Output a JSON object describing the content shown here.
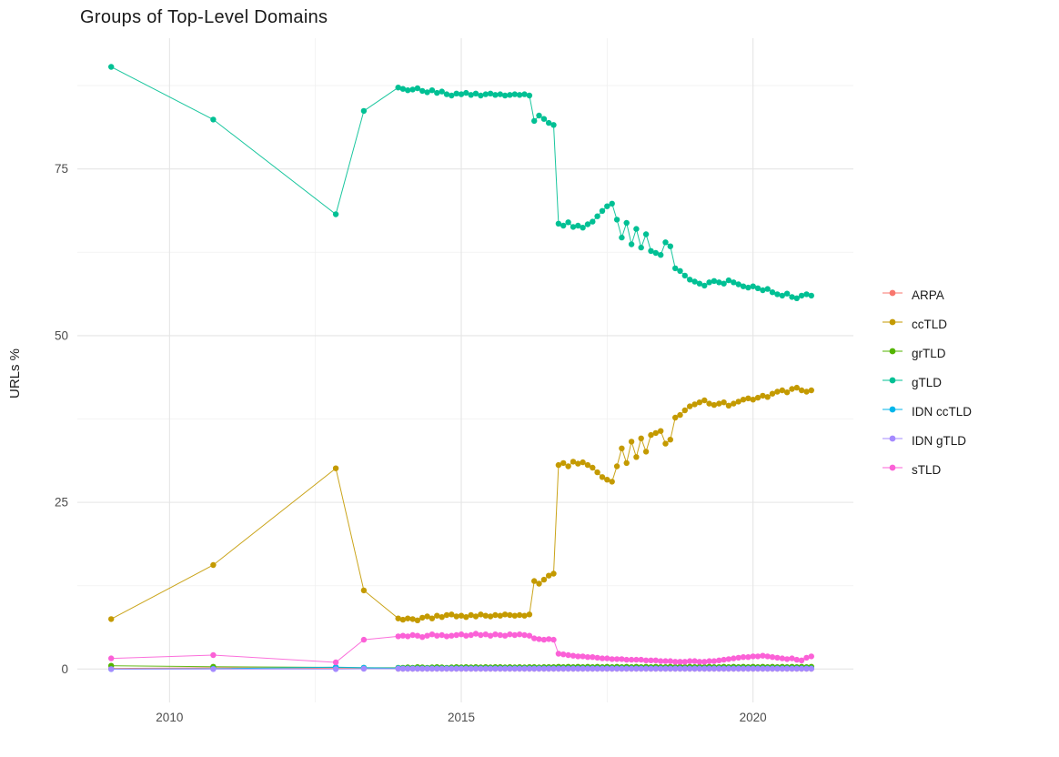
{
  "title": "Groups of Top-Level Domains",
  "ylabel": "URLs %",
  "chart_data": {
    "type": "line",
    "title": "Groups of Top-Level Domains",
    "xlabel": "",
    "ylabel": "URLs %",
    "xlim": [
      2008.42,
      2021.72
    ],
    "ylim": [
      -5.0,
      94.6
    ],
    "x_ticks": [
      2010,
      2015,
      2020
    ],
    "y_ticks": [
      0,
      25,
      50,
      75
    ],
    "x_minor": [
      2012.5,
      2017.5
    ],
    "y_minor": [
      12.5,
      37.5,
      62.5,
      87.5
    ],
    "grid": true,
    "legend_position": "right",
    "background": "#ffffff",
    "grid_major_color": "#e5e5e5",
    "grid_minor_color": "#f0f0f0",
    "x": [
      2009.0,
      2010.75,
      2012.85,
      2013.33,
      2013.92,
      2014.0,
      2014.083,
      2014.167,
      2014.25,
      2014.333,
      2014.417,
      2014.5,
      2014.583,
      2014.667,
      2014.75,
      2014.833,
      2014.917,
      2015.0,
      2015.083,
      2015.167,
      2015.25,
      2015.333,
      2015.417,
      2015.5,
      2015.583,
      2015.667,
      2015.75,
      2015.833,
      2015.917,
      2016.0,
      2016.083,
      2016.167,
      2016.25,
      2016.333,
      2016.417,
      2016.5,
      2016.583,
      2016.667,
      2016.75,
      2016.833,
      2016.917,
      2017.0,
      2017.083,
      2017.167,
      2017.25,
      2017.333,
      2017.417,
      2017.5,
      2017.583,
      2017.667,
      2017.75,
      2017.833,
      2017.917,
      2018.0,
      2018.083,
      2018.167,
      2018.25,
      2018.333,
      2018.417,
      2018.5,
      2018.583,
      2018.667,
      2018.75,
      2018.833,
      2018.917,
      2019.0,
      2019.083,
      2019.167,
      2019.25,
      2019.333,
      2019.417,
      2019.5,
      2019.583,
      2019.667,
      2019.75,
      2019.833,
      2019.917,
      2020.0,
      2020.083,
      2020.167,
      2020.25,
      2020.333,
      2020.417,
      2020.5,
      2020.583,
      2020.667,
      2020.75,
      2020.833,
      2020.917,
      2021.0
    ],
    "series": [
      {
        "name": "ARPA",
        "color": "#F8766D",
        "values": [
          0.1,
          0.2,
          0.1,
          0.08,
          0.05,
          0.05,
          0.05,
          0.05,
          0.05,
          0.05,
          0.05,
          0.05,
          0.05,
          0.05,
          0.05,
          0.05,
          0.05,
          0.05,
          0.05,
          0.05,
          0.05,
          0.05,
          0.05,
          0.05,
          0.05,
          0.05,
          0.05,
          0.05,
          0.05,
          0.05,
          0.05,
          0.05,
          0.05,
          0.05,
          0.05,
          0.05,
          0.05,
          0.05,
          0.05,
          0.05,
          0.05,
          0.05,
          0.05,
          0.05,
          0.05,
          0.05,
          0.05,
          0.05,
          0.05,
          0.05,
          0.05,
          0.05,
          0.05,
          0.05,
          0.05,
          0.05,
          0.05,
          0.05,
          0.05,
          0.05,
          0.05,
          0.05,
          0.05,
          0.05,
          0.05,
          0.05,
          0.05,
          0.05,
          0.05,
          0.05,
          0.05,
          0.05,
          0.05,
          0.05,
          0.05,
          0.05,
          0.05,
          0.05,
          0.05,
          0.05,
          0.05,
          0.05,
          0.05,
          0.05,
          0.05,
          0.05,
          0.05,
          0.05,
          0.05,
          0.05
        ]
      },
      {
        "name": "ccTLD",
        "color": "#C49A00",
        "values": [
          7.5,
          15.6,
          30.1,
          11.8,
          7.6,
          7.4,
          7.6,
          7.5,
          7.3,
          7.7,
          7.9,
          7.6,
          8.0,
          7.8,
          8.1,
          8.2,
          7.9,
          8.0,
          7.8,
          8.1,
          7.9,
          8.2,
          8.0,
          7.9,
          8.1,
          8.0,
          8.2,
          8.1,
          8.0,
          8.1,
          8.0,
          8.2,
          13.2,
          12.8,
          13.4,
          14.0,
          14.3,
          30.6,
          30.9,
          30.4,
          31.1,
          30.8,
          31.0,
          30.6,
          30.2,
          29.5,
          28.8,
          28.4,
          28.1,
          30.4,
          33.1,
          30.9,
          34.1,
          31.8,
          34.6,
          32.6,
          35.1,
          35.4,
          35.7,
          33.8,
          34.4,
          37.7,
          38.1,
          38.8,
          39.4,
          39.7,
          40.0,
          40.3,
          39.8,
          39.6,
          39.8,
          40.0,
          39.5,
          39.8,
          40.1,
          40.4,
          40.6,
          40.4,
          40.7,
          41.0,
          40.8,
          41.3,
          41.6,
          41.8,
          41.5,
          42.0,
          42.2,
          41.8,
          41.6,
          41.8
        ]
      },
      {
        "name": "grTLD",
        "color": "#53B400",
        "values": [
          0.5,
          0.35,
          0.25,
          0.2,
          0.2,
          0.2,
          0.25,
          0.2,
          0.3,
          0.25,
          0.2,
          0.25,
          0.3,
          0.25,
          0.2,
          0.25,
          0.3,
          0.25,
          0.3,
          0.25,
          0.3,
          0.25,
          0.3,
          0.25,
          0.3,
          0.3,
          0.25,
          0.3,
          0.25,
          0.3,
          0.25,
          0.3,
          0.3,
          0.25,
          0.3,
          0.3,
          0.3,
          0.35,
          0.3,
          0.35,
          0.3,
          0.35,
          0.3,
          0.35,
          0.3,
          0.35,
          0.3,
          0.35,
          0.3,
          0.35,
          0.3,
          0.35,
          0.3,
          0.35,
          0.3,
          0.35,
          0.3,
          0.35,
          0.3,
          0.3,
          0.35,
          0.3,
          0.35,
          0.3,
          0.35,
          0.3,
          0.35,
          0.3,
          0.35,
          0.3,
          0.3,
          0.35,
          0.3,
          0.35,
          0.3,
          0.35,
          0.3,
          0.35,
          0.3,
          0.35,
          0.3,
          0.35,
          0.3,
          0.35,
          0.3,
          0.35,
          0.3,
          0.35,
          0.3,
          0.35
        ]
      },
      {
        "name": "gTLD",
        "color": "#00C094",
        "values": [
          90.3,
          82.4,
          68.2,
          83.7,
          87.2,
          87.0,
          86.8,
          86.9,
          87.1,
          86.7,
          86.5,
          86.8,
          86.4,
          86.6,
          86.2,
          86.0,
          86.3,
          86.2,
          86.4,
          86.1,
          86.3,
          86.0,
          86.2,
          86.3,
          86.1,
          86.2,
          86.0,
          86.1,
          86.2,
          86.1,
          86.2,
          86.0,
          82.2,
          83.0,
          82.5,
          81.9,
          81.6,
          66.8,
          66.5,
          67.0,
          66.3,
          66.5,
          66.2,
          66.7,
          67.1,
          67.9,
          68.7,
          69.4,
          69.8,
          67.4,
          64.7,
          66.9,
          63.7,
          66.0,
          63.2,
          65.2,
          62.7,
          62.4,
          62.1,
          64.0,
          63.4,
          60.1,
          59.7,
          59.0,
          58.4,
          58.1,
          57.8,
          57.5,
          58.0,
          58.2,
          58.0,
          57.8,
          58.3,
          58.0,
          57.7,
          57.4,
          57.2,
          57.4,
          57.1,
          56.8,
          57.0,
          56.5,
          56.2,
          56.0,
          56.3,
          55.8,
          55.6,
          56.0,
          56.2,
          56.0
        ]
      },
      {
        "name": "IDN ccTLD",
        "color": "#00B6EB",
        "values": [
          0.0,
          0.05,
          0.3,
          0.2,
          0.15,
          0.1,
          0.1,
          0.1,
          0.1,
          0.1,
          0.1,
          0.1,
          0.1,
          0.1,
          0.1,
          0.1,
          0.1,
          0.1,
          0.1,
          0.1,
          0.1,
          0.1,
          0.1,
          0.1,
          0.1,
          0.1,
          0.1,
          0.1,
          0.1,
          0.1,
          0.1,
          0.1,
          0.1,
          0.1,
          0.1,
          0.1,
          0.1,
          0.1,
          0.1,
          0.1,
          0.1,
          0.1,
          0.1,
          0.1,
          0.1,
          0.1,
          0.1,
          0.1,
          0.1,
          0.1,
          0.1,
          0.1,
          0.1,
          0.1,
          0.1,
          0.1,
          0.1,
          0.1,
          0.1,
          0.1,
          0.1,
          0.1,
          0.1,
          0.1,
          0.1,
          0.1,
          0.1,
          0.1,
          0.1,
          0.1,
          0.1,
          0.1,
          0.1,
          0.1,
          0.1,
          0.1,
          0.1,
          0.1,
          0.1,
          0.1,
          0.1,
          0.1,
          0.1,
          0.1,
          0.1,
          0.1,
          0.1,
          0.1,
          0.1,
          0.1
        ]
      },
      {
        "name": "IDN gTLD",
        "color": "#A58AFF",
        "values": [
          0.0,
          0.0,
          0.0,
          0.05,
          0.05,
          0.05,
          0.05,
          0.05,
          0.05,
          0.05,
          0.05,
          0.05,
          0.05,
          0.05,
          0.05,
          0.05,
          0.05,
          0.05,
          0.05,
          0.05,
          0.05,
          0.05,
          0.05,
          0.05,
          0.05,
          0.05,
          0.05,
          0.05,
          0.05,
          0.05,
          0.05,
          0.05,
          0.05,
          0.05,
          0.05,
          0.05,
          0.05,
          0.05,
          0.05,
          0.05,
          0.05,
          0.05,
          0.05,
          0.05,
          0.05,
          0.05,
          0.05,
          0.05,
          0.05,
          0.05,
          0.05,
          0.05,
          0.05,
          0.05,
          0.05,
          0.05,
          0.05,
          0.05,
          0.05,
          0.05,
          0.05,
          0.05,
          0.05,
          0.05,
          0.05,
          0.05,
          0.05,
          0.05,
          0.05,
          0.05,
          0.05,
          0.05,
          0.05,
          0.05,
          0.05,
          0.05,
          0.05,
          0.05,
          0.05,
          0.05,
          0.05,
          0.05,
          0.05,
          0.05,
          0.05,
          0.05,
          0.05,
          0.05,
          0.05,
          0.05
        ]
      },
      {
        "name": "sTLD",
        "color": "#FB61D7",
        "values": [
          1.6,
          2.1,
          1.0,
          4.4,
          4.9,
          5.0,
          4.9,
          5.1,
          5.0,
          4.8,
          5.0,
          5.2,
          5.0,
          5.1,
          4.9,
          5.0,
          5.1,
          5.2,
          5.0,
          5.1,
          5.3,
          5.1,
          5.2,
          5.0,
          5.2,
          5.1,
          5.0,
          5.2,
          5.1,
          5.2,
          5.1,
          5.0,
          4.6,
          4.5,
          4.4,
          4.5,
          4.4,
          2.3,
          2.2,
          2.1,
          2.0,
          1.9,
          1.9,
          1.8,
          1.8,
          1.7,
          1.6,
          1.6,
          1.5,
          1.5,
          1.5,
          1.4,
          1.4,
          1.4,
          1.4,
          1.3,
          1.3,
          1.3,
          1.2,
          1.2,
          1.2,
          1.1,
          1.1,
          1.1,
          1.2,
          1.2,
          1.1,
          1.1,
          1.2,
          1.2,
          1.3,
          1.4,
          1.5,
          1.6,
          1.7,
          1.8,
          1.8,
          1.9,
          1.9,
          2.0,
          1.9,
          1.8,
          1.7,
          1.6,
          1.5,
          1.6,
          1.4,
          1.3,
          1.7,
          1.9
        ]
      }
    ]
  }
}
